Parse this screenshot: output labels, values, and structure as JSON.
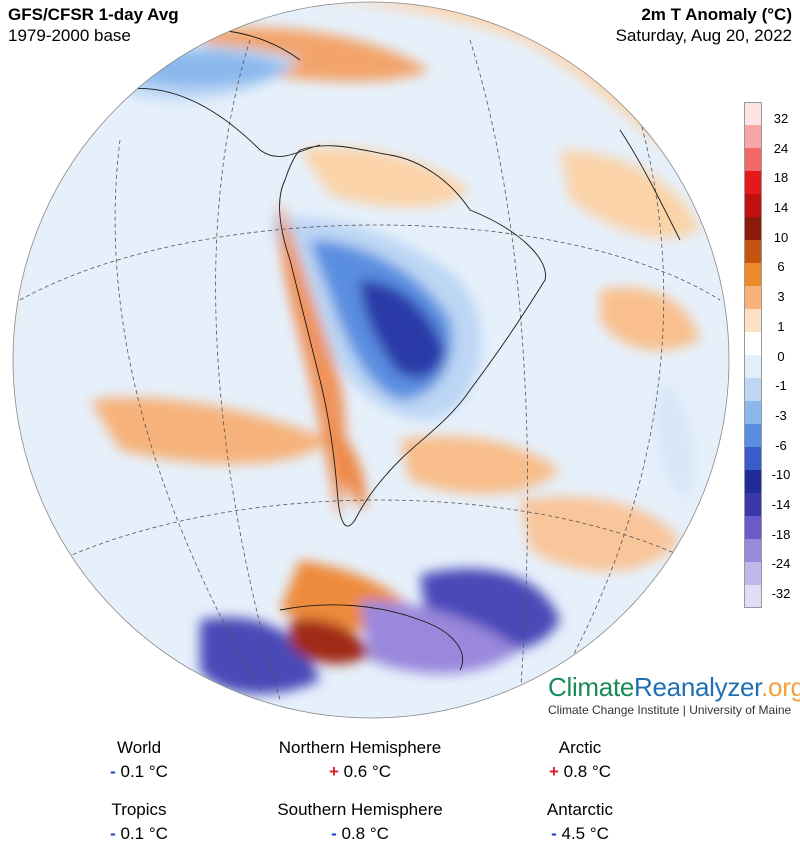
{
  "header": {
    "title": "GFS/CFSR 1-day Avg",
    "subtitle": "1979-2000 base",
    "variable": "2m T Anomaly (°C)",
    "date": "Saturday, Aug 20, 2022"
  },
  "colorbar": {
    "labels": [
      "32",
      "24",
      "18",
      "14",
      "10",
      "6",
      "3",
      "1",
      "0",
      "-1",
      "-3",
      "-6",
      "-10",
      "-14",
      "-18",
      "-24",
      "-32"
    ],
    "colors": [
      "#fde4e4",
      "#f7a5a5",
      "#f06868",
      "#e41a1a",
      "#c01010",
      "#8e1a0a",
      "#c55410",
      "#ee8a2a",
      "#f9b37a",
      "#fde1c4",
      "#ffffff",
      "#e3eefb",
      "#bcd6f4",
      "#8ab8ec",
      "#5a8ee0",
      "#3a5cc8",
      "#1f2b98",
      "#3a37a8",
      "#6a5bc8",
      "#9a88dc",
      "#c3b6ea",
      "#e3dcf5"
    ]
  },
  "brand": {
    "part1": "Climate",
    "part2": "Reanalyzer",
    "part3": ".org",
    "sub": "Climate Change Institute | University of Maine"
  },
  "stats": [
    {
      "name": "World",
      "sign": "-",
      "value": "0.1 °C"
    },
    {
      "name": "Northern Hemisphere",
      "sign": "+",
      "value": "0.6 °C"
    },
    {
      "name": "Arctic",
      "sign": "+",
      "value": "0.8 °C"
    },
    {
      "name": "Tropics",
      "sign": "-",
      "value": "0.1 °C"
    },
    {
      "name": "Southern Hemisphere",
      "sign": "-",
      "value": "0.8 °C"
    },
    {
      "name": "Antarctic",
      "sign": "-",
      "value": "4.5 °C"
    }
  ]
}
